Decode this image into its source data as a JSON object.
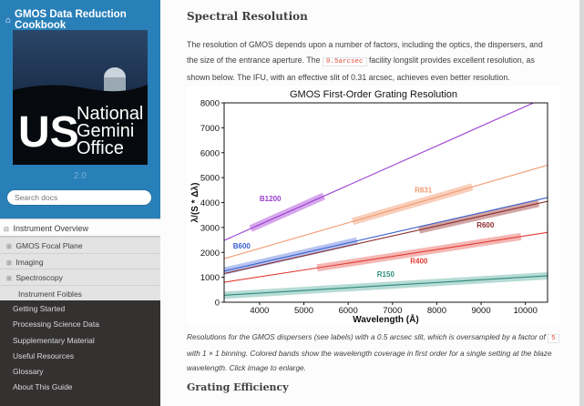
{
  "sidebar": {
    "brand": "GMOS Data Reduction Cookbook",
    "logo": {
      "line1": "US",
      "line2": "National",
      "line3": "Gemini",
      "line4": "Office"
    },
    "version": "2.0",
    "search_placeholder": "Search docs",
    "current_section": "Instrument Overview",
    "subitems": [
      "GMOS Focal Plane",
      "Imaging",
      "Spectroscopy"
    ],
    "subsubitem": "Instrument Foibles",
    "top_items": [
      "Getting Started",
      "Processing Science Data",
      "Supplementary Material",
      "Useful Resources",
      "Glossary",
      "About This Guide"
    ]
  },
  "content": {
    "heading": "Spectral Resolution",
    "intro_part1": "The resolution of GMOS depends upon a number of factors, including the optics, the dispersers, and the size of the entrance aperture. The ",
    "intro_code": "0.5arcsec",
    "intro_part2": " facility longslit provides excellent resolution, as shown below. The IFU, with an effective slit of 0.31 arcsec, achieves even better resolution.",
    "caption_part1": "Resolutions for the GMOS dispersers (see labels) with a 0.5 arcsec slit, which is oversampled by a factor of ",
    "caption_code": "5",
    "caption_part2": " with 1 × 1 binning. Colored bands show the wavelength coverage in first order for a single setting at the blaze wavelength. Click image to enlarge.",
    "next_heading": "Grating Efficiency"
  },
  "chart_data": {
    "type": "line",
    "title": "GMOS First-Order Grating Resolution",
    "xlabel": "Wavelength (Å)",
    "ylabel": "λ/(S * Δλ)",
    "xlim": [
      3200,
      10500
    ],
    "ylim": [
      0,
      8000
    ],
    "xticks": [
      4000,
      5000,
      6000,
      7000,
      8000,
      9000,
      10000
    ],
    "yticks": [
      0,
      1000,
      2000,
      3000,
      4000,
      5000,
      6000,
      7000,
      8000
    ],
    "series": [
      {
        "name": "B1200",
        "color": "#9a3ed1",
        "band_color": "#c98ae6",
        "x": [
          3200,
          10500
        ],
        "y": [
          2480,
          8250
        ],
        "band": [
          3800,
          5450
        ],
        "label_x": 4000,
        "label_y": 4050
      },
      {
        "name": "R831",
        "color": "#f29a70",
        "band_color": "#f6c0a5",
        "x": [
          3200,
          10500
        ],
        "y": [
          1750,
          5500
        ],
        "band": [
          6100,
          8800
        ],
        "label_x": 7500,
        "label_y": 4400
      },
      {
        "name": "B600",
        "color": "#3a5fcd",
        "band_color": "#9fb1ec",
        "x": [
          3200,
          10500
        ],
        "y": [
          1250,
          4200
        ],
        "band": [
          3200,
          6200
        ],
        "label_x": 3400,
        "label_y": 2150
      },
      {
        "name": "R600",
        "color": "#8b2c2c",
        "band_color": "#c48787",
        "x": [
          3200,
          10500
        ],
        "y": [
          1150,
          4050
        ],
        "band": [
          7600,
          10300
        ],
        "label_x": 8900,
        "label_y": 3000
      },
      {
        "name": "R400",
        "color": "#e23b33",
        "band_color": "#f1a09b",
        "x": [
          3200,
          10500
        ],
        "y": [
          800,
          2800
        ],
        "band": [
          5300,
          9900
        ],
        "label_x": 7400,
        "label_y": 1550
      },
      {
        "name": "R150",
        "color": "#2e8b7c",
        "band_color": "#9fd0c8",
        "x": [
          3200,
          10500
        ],
        "y": [
          280,
          1060
        ],
        "band": [
          3200,
          10500
        ],
        "label_x": 6650,
        "label_y": 1020
      }
    ]
  }
}
